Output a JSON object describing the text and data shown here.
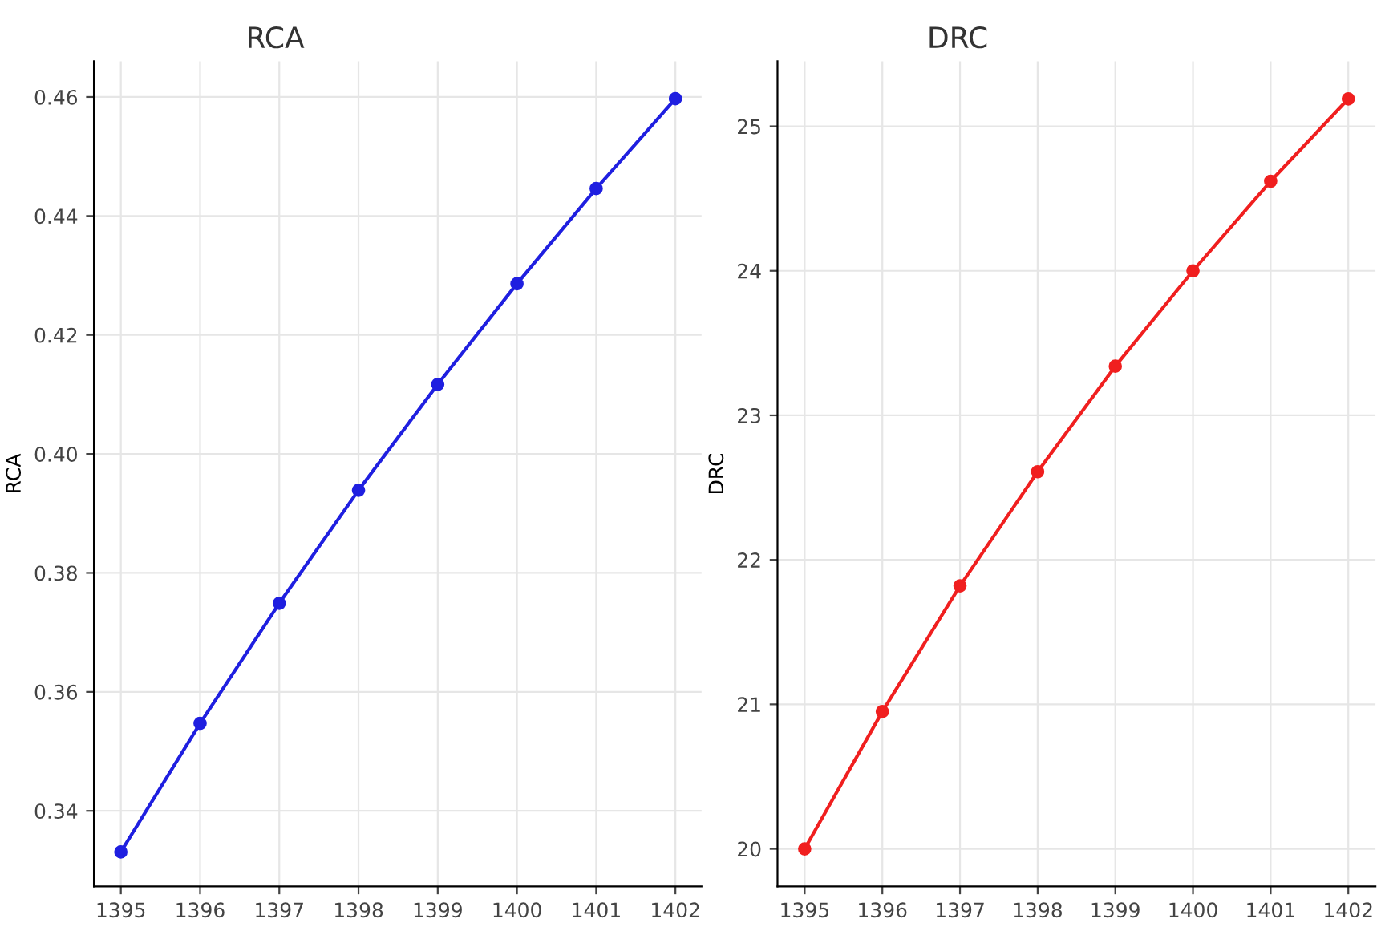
{
  "chart_data": [
    {
      "type": "line",
      "title": "RCA",
      "ylabel": "RCA",
      "x": [
        1395,
        1396,
        1397,
        1398,
        1399,
        1400,
        1401,
        1402
      ],
      "series": [
        {
          "color": "#1f1fe0",
          "values": [
            0.3331,
            0.3547,
            0.3749,
            0.3939,
            0.4117,
            0.4286,
            0.4446,
            0.4597
          ]
        }
      ],
      "xlim": [
        1394.66,
        1402.33
      ],
      "ylim": [
        0.3273,
        0.466
      ],
      "xticks": [
        1395,
        1396,
        1397,
        1398,
        1399,
        1400,
        1401,
        1402
      ],
      "yticks": [
        0.34,
        0.36,
        0.38,
        {
          "value": 0.4,
          "label": "0.40"
        },
        0.42,
        0.44,
        0.46
      ],
      "grid": true,
      "marker": "circle",
      "line_style": "solid"
    },
    {
      "type": "line",
      "title": "DRC",
      "ylabel": "DRC",
      "x": [
        1395,
        1396,
        1397,
        1398,
        1399,
        1400,
        1401,
        1402
      ],
      "series": [
        {
          "color": "#f01f1f",
          "values": [
            20.0,
            20.95,
            21.82,
            22.61,
            23.34,
            24.0,
            24.62,
            25.19
          ]
        }
      ],
      "xlim": [
        1394.65,
        1402.35
      ],
      "ylim": [
        19.74,
        25.45
      ],
      "xticks": [
        1395,
        1396,
        1397,
        1398,
        1399,
        1400,
        1401,
        1402
      ],
      "yticks": [
        20,
        21,
        22,
        23,
        24,
        25
      ],
      "grid": true,
      "marker": "circle",
      "line_style": "solid"
    }
  ]
}
